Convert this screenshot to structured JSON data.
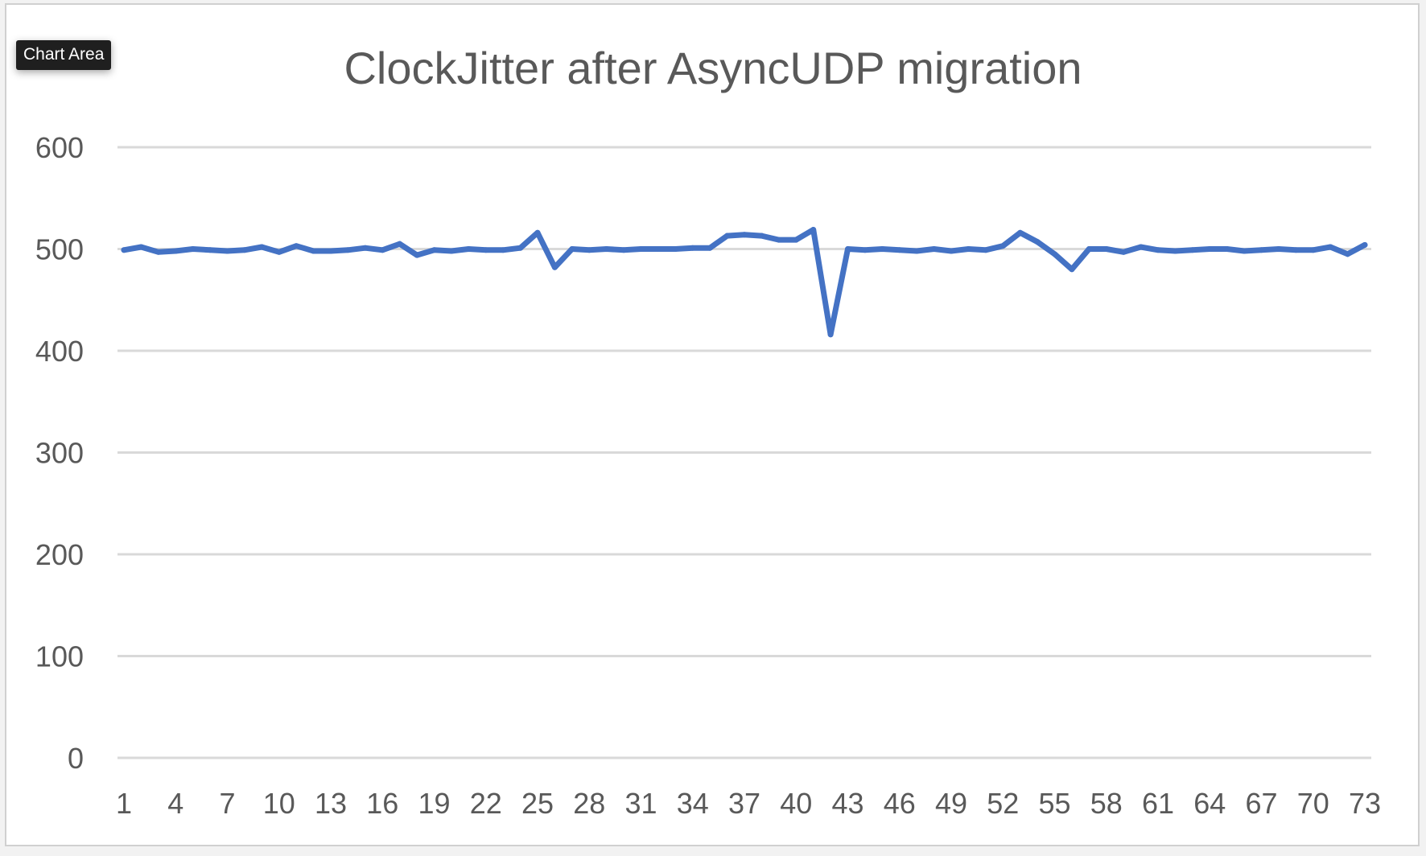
{
  "tooltip": {
    "label": "Chart Area"
  },
  "colors": {
    "series": "#4472c4",
    "gridline": "#d9d9d9",
    "text": "#595959",
    "tooltip_bg": "#1f1f1f"
  },
  "chart_data": {
    "type": "line",
    "title": "ClockJitter after AsyncUDP migration",
    "xlabel": "",
    "ylabel": "",
    "ylim": [
      0,
      600
    ],
    "yticks": [
      0,
      100,
      200,
      300,
      400,
      500,
      600
    ],
    "xtick_labels": [
      "1",
      "4",
      "7",
      "10",
      "13",
      "16",
      "19",
      "22",
      "25",
      "28",
      "31",
      "34",
      "37",
      "40",
      "43",
      "46",
      "49",
      "52",
      "55",
      "58",
      "61",
      "64",
      "67",
      "70",
      "73"
    ],
    "grid": true,
    "legend": "none",
    "x": [
      1,
      2,
      3,
      4,
      5,
      6,
      7,
      8,
      9,
      10,
      11,
      12,
      13,
      14,
      15,
      16,
      17,
      18,
      19,
      20,
      21,
      22,
      23,
      24,
      25,
      26,
      27,
      28,
      29,
      30,
      31,
      32,
      33,
      34,
      35,
      36,
      37,
      38,
      39,
      40,
      41,
      42,
      43,
      44,
      45,
      46,
      47,
      48,
      49,
      50,
      51,
      52,
      53,
      54,
      55,
      56,
      57,
      58,
      59,
      60,
      61,
      62,
      63,
      64,
      65,
      66,
      67,
      68,
      69,
      70,
      71,
      72,
      73
    ],
    "series": [
      {
        "values": [
          499,
          502,
          497,
          498,
          500,
          499,
          498,
          499,
          502,
          497,
          503,
          498,
          498,
          499,
          501,
          499,
          505,
          494,
          499,
          498,
          500,
          499,
          499,
          501,
          516,
          482,
          500,
          499,
          500,
          499,
          500,
          500,
          500,
          501,
          501,
          513,
          514,
          513,
          509,
          509,
          519,
          416,
          500,
          499,
          500,
          499,
          498,
          500,
          498,
          500,
          499,
          503,
          516,
          507,
          495,
          480,
          500,
          500,
          497,
          502,
          499,
          498,
          499,
          500,
          500,
          498,
          499,
          500,
          499,
          499,
          502,
          495,
          504
        ]
      }
    ]
  }
}
